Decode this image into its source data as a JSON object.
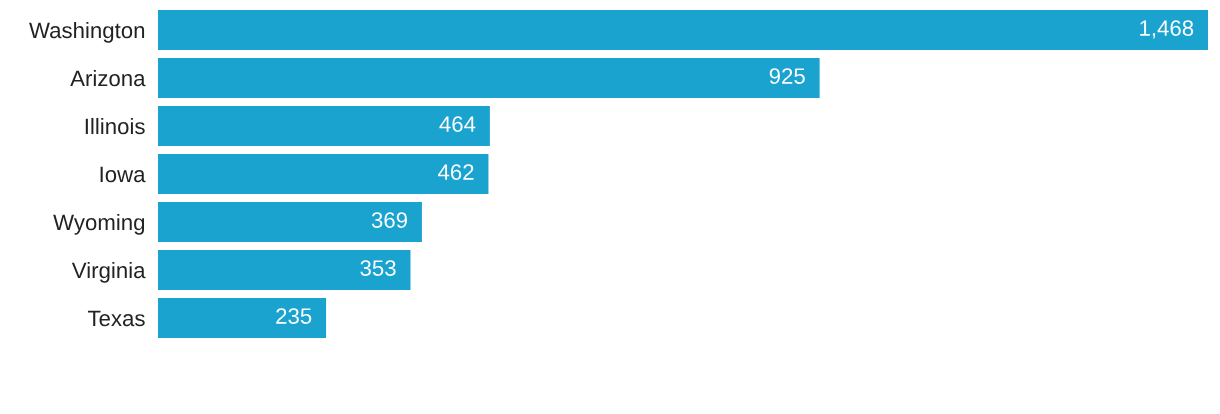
{
  "chart_data": {
    "type": "bar",
    "orientation": "horizontal",
    "categories": [
      "Washington",
      "Arizona",
      "Illinois",
      "Iowa",
      "Wyoming",
      "Virginia",
      "Texas"
    ],
    "values": [
      1468,
      925,
      464,
      462,
      369,
      353,
      235
    ],
    "value_labels": [
      "1,468",
      "925",
      "464",
      "462",
      "369",
      "353",
      "235"
    ],
    "color": "#1ba3d0",
    "xlim": [
      0,
      1468
    ]
  }
}
